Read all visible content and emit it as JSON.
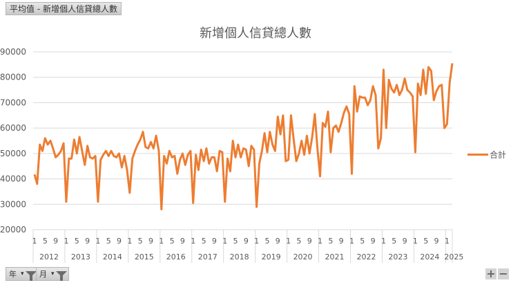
{
  "value_field_button": {
    "label": "平均值 - 新增個人信貸總人數"
  },
  "axis_field_buttons": [
    {
      "label": "年",
      "dropdown": "▾",
      "icon": "filter-icon"
    },
    {
      "label": "月",
      "dropdown": "▾",
      "icon": "filter-icon"
    }
  ],
  "zoom_controls": {
    "expand": "+",
    "collapse": "−"
  },
  "legend": {
    "label": "合計",
    "color": "#ED7D31"
  },
  "colors": {
    "series": "#ED7D31",
    "grid": "#D9D9D9",
    "text": "#595959"
  },
  "chart_data": {
    "type": "line",
    "title": "新增個人信貸總人數",
    "xlabel": "",
    "ylabel": "",
    "ylim": [
      20000,
      90000
    ],
    "yticks": [
      20000,
      30000,
      40000,
      50000,
      60000,
      70000,
      80000,
      90000
    ],
    "grid": true,
    "legend_position": "right",
    "x_month_ticks": [
      "1",
      "5",
      "9"
    ],
    "years": [
      "2012",
      "2013",
      "2014",
      "2015",
      "2016",
      "2017",
      "2018",
      "2019",
      "2020",
      "2021",
      "2022",
      "2023",
      "2024",
      "2025"
    ],
    "series": [
      {
        "name": "合計",
        "start": "2012-01",
        "values": [
          41800,
          38000,
          53500,
          51000,
          56000,
          53500,
          55000,
          52000,
          48500,
          49500,
          51000,
          54000,
          31000,
          48000,
          48000,
          55500,
          50000,
          56500,
          51000,
          45500,
          53000,
          48500,
          48000,
          49000,
          31000,
          47500,
          49500,
          51000,
          49000,
          51000,
          49000,
          48500,
          50000,
          44500,
          49000,
          43500,
          34500,
          48000,
          51000,
          53500,
          55500,
          58500,
          52500,
          52000,
          54500,
          52000,
          57000,
          51000,
          28000,
          49000,
          46000,
          51000,
          48500,
          49000,
          42000,
          47500,
          50000,
          45500,
          49500,
          51000,
          30500,
          49500,
          43500,
          51500,
          47000,
          52000,
          46000,
          48500,
          48500,
          43000,
          51000,
          50500,
          31000,
          48000,
          43000,
          55000,
          48500,
          53500,
          48500,
          52000,
          51500,
          45000,
          53000,
          51500,
          29000,
          46000,
          51000,
          58000,
          50500,
          58500,
          53500,
          51000,
          64500,
          57500,
          65000,
          47000,
          47500,
          65000,
          55500,
          47000,
          50000,
          55000,
          49500,
          57000,
          50000,
          56500,
          65500,
          52000,
          41000,
          62000,
          60500,
          66500,
          50500,
          60000,
          61000,
          58500,
          62000,
          66000,
          68500,
          65500,
          42000,
          76500,
          66500,
          72500,
          72000,
          72000,
          69000,
          71000,
          76500,
          73000,
          52000,
          56000,
          83000,
          60000,
          79000,
          75500,
          74000,
          77000,
          73000,
          75000,
          79500,
          75000,
          74000,
          72500,
          50500,
          77500,
          73000,
          83000,
          73500,
          84000,
          82500,
          71000,
          74500,
          76500,
          77000,
          60000,
          61500,
          78000,
          85500
        ]
      }
    ]
  }
}
